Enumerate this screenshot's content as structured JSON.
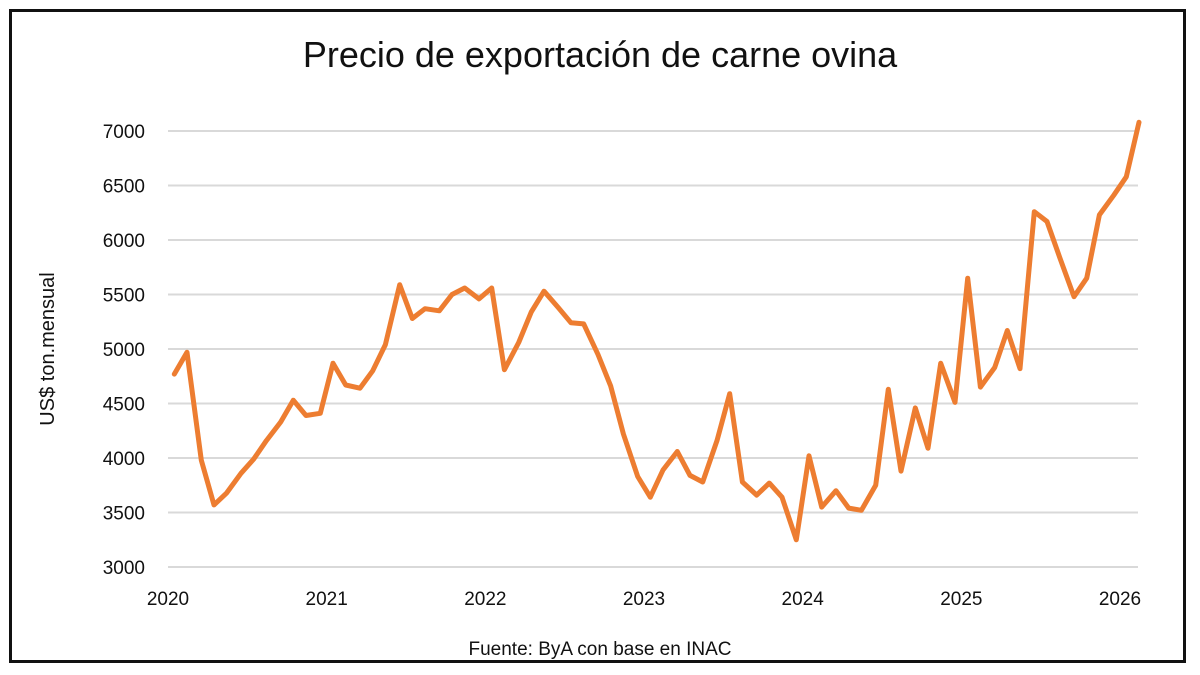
{
  "chart_data": {
    "type": "line",
    "title": "Precio de exportación de carne ovina",
    "xlabel": "",
    "ylabel": "US$ ton.mensual",
    "source": "Fuente: ByA con base en INAC",
    "ylim": [
      3000,
      7000
    ],
    "yticks": [
      3000,
      3500,
      4000,
      4500,
      5000,
      5500,
      6000,
      6500,
      7000
    ],
    "xticks": [
      "2020",
      "2021",
      "2022",
      "2023",
      "2024",
      "2025",
      "2026"
    ],
    "xlim": [
      2020,
      2026.1
    ],
    "grid": true,
    "legend": "none",
    "line_color": "#ED7D31",
    "grid_color": "#D9D9D9",
    "series": [
      {
        "name": "Precio exportación carne ovina",
        "x": [
          2020.04,
          2020.12,
          2020.21,
          2020.29,
          2020.37,
          2020.46,
          2020.54,
          2020.62,
          2020.71,
          2020.79,
          2020.87,
          2020.96,
          2021.04,
          2021.12,
          2021.21,
          2021.29,
          2021.37,
          2021.46,
          2021.54,
          2021.62,
          2021.71,
          2021.79,
          2021.87,
          2021.96,
          2022.04,
          2022.12,
          2022.21,
          2022.29,
          2022.37,
          2022.46,
          2022.54,
          2022.62,
          2022.71,
          2022.79,
          2022.87,
          2022.96,
          2023.04,
          2023.12,
          2023.21,
          2023.29,
          2023.37,
          2023.46,
          2023.54,
          2023.62,
          2023.71,
          2023.79,
          2023.87,
          2023.96,
          2024.04,
          2024.12,
          2024.21,
          2024.29,
          2024.37,
          2024.46,
          2024.54,
          2024.62,
          2024.71,
          2024.79,
          2024.87,
          2024.96,
          2025.04,
          2025.12,
          2025.21,
          2025.29,
          2025.37,
          2025.46,
          2025.54,
          2025.62,
          2025.71,
          2025.79,
          2025.87,
          2025.96,
          2026.04,
          2026.12
        ],
        "values": [
          4770,
          4970,
          3980,
          3570,
          3680,
          3860,
          3990,
          4160,
          4330,
          4530,
          4390,
          4410,
          4870,
          4670,
          4640,
          4800,
          5040,
          5590,
          5280,
          5370,
          5350,
          5500,
          5560,
          5460,
          5560,
          4810,
          5060,
          5340,
          5530,
          5380,
          5240,
          5230,
          4950,
          4660,
          4220,
          3830,
          3640,
          3890,
          4060,
          3840,
          3780,
          4160,
          4590,
          3780,
          3660,
          3770,
          3640,
          3250,
          4020,
          3550,
          3700,
          3540,
          3520,
          3750,
          4630,
          3880,
          4460,
          4090,
          4870,
          4510,
          5650,
          4650,
          4830,
          5170,
          4820,
          6260,
          6170,
          5840,
          5480,
          5650,
          6230,
          6410,
          6580,
          7080
        ]
      }
    ]
  }
}
